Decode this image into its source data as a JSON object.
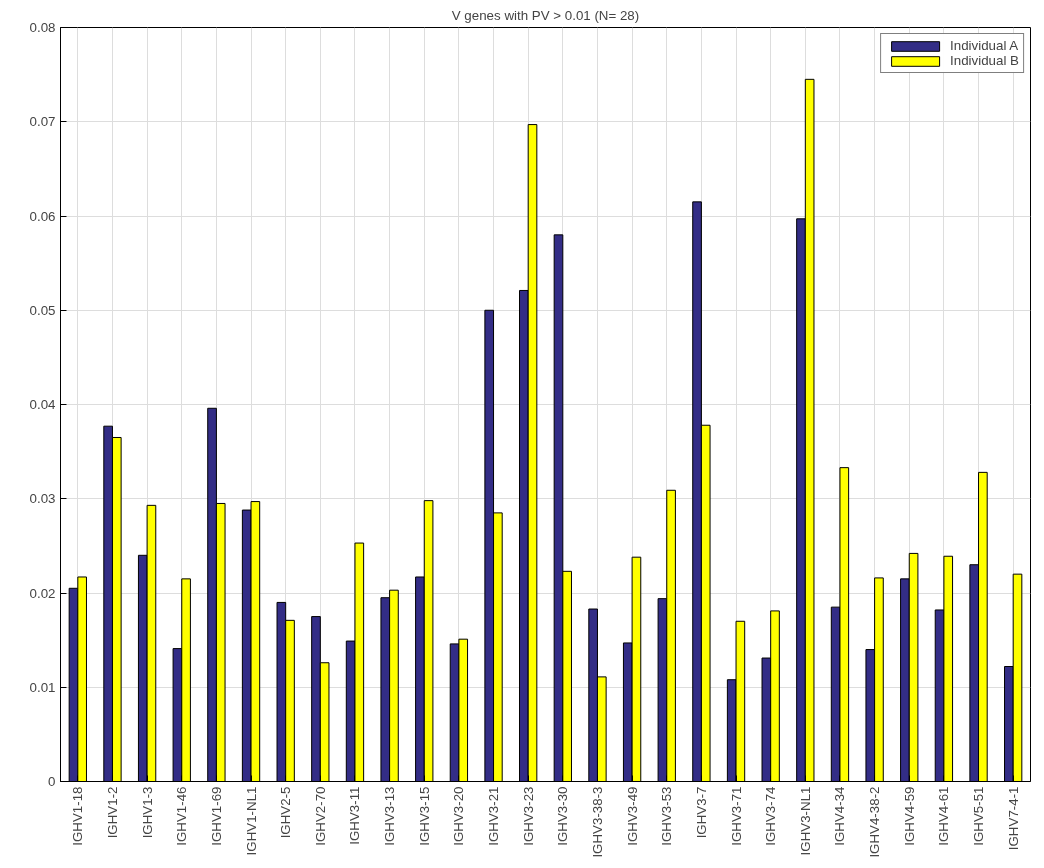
{
  "chart_data": {
    "type": "bar",
    "title": "V genes with PV > 0.01 (N= 28)",
    "categories": [
      "IGHV1-18",
      "IGHV1-2",
      "IGHV1-3",
      "IGHV1-46",
      "IGHV1-69",
      "IGHV1-NL1",
      "IGHV2-5",
      "IGHV2-70",
      "IGHV3-11",
      "IGHV3-13",
      "IGHV3-15",
      "IGHV3-20",
      "IGHV3-21",
      "IGHV3-23",
      "IGHV3-30",
      "IGHV3-38-3",
      "IGHV3-49",
      "IGHV3-53",
      "IGHV3-7",
      "IGHV3-71",
      "IGHV3-74",
      "IGHV3-NL1",
      "IGHV4-34",
      "IGHV4-38-2",
      "IGHV4-59",
      "IGHV4-61",
      "IGHV5-51",
      "IGHV7-4-1"
    ],
    "series": [
      {
        "name": "Individual A",
        "color": "#332d86",
        "values": [
          0.0205,
          0.0377,
          0.024,
          0.0141,
          0.0396,
          0.0288,
          0.019,
          0.0175,
          0.0149,
          0.0195,
          0.0217,
          0.0146,
          0.05,
          0.0521,
          0.058,
          0.0183,
          0.0147,
          0.0194,
          0.0615,
          0.0108,
          0.0131,
          0.0597,
          0.0185,
          0.014,
          0.0215,
          0.0182,
          0.023,
          0.0122
        ]
      },
      {
        "name": "Individual B",
        "color": "#ffff00",
        "values": [
          0.0217,
          0.0365,
          0.0293,
          0.0215,
          0.0295,
          0.0297,
          0.0171,
          0.0126,
          0.0253,
          0.0203,
          0.0298,
          0.0151,
          0.0285,
          0.0697,
          0.0223,
          0.0111,
          0.0238,
          0.0309,
          0.0378,
          0.017,
          0.0181,
          0.0745,
          0.0333,
          0.0216,
          0.0242,
          0.0239,
          0.0328,
          0.022
        ]
      }
    ],
    "ylim": [
      0,
      0.08
    ],
    "yticks": [
      0,
      0.01,
      0.02,
      0.03,
      0.04,
      0.05,
      0.06,
      0.07,
      0.08
    ],
    "grid": true,
    "legend": "top right"
  }
}
